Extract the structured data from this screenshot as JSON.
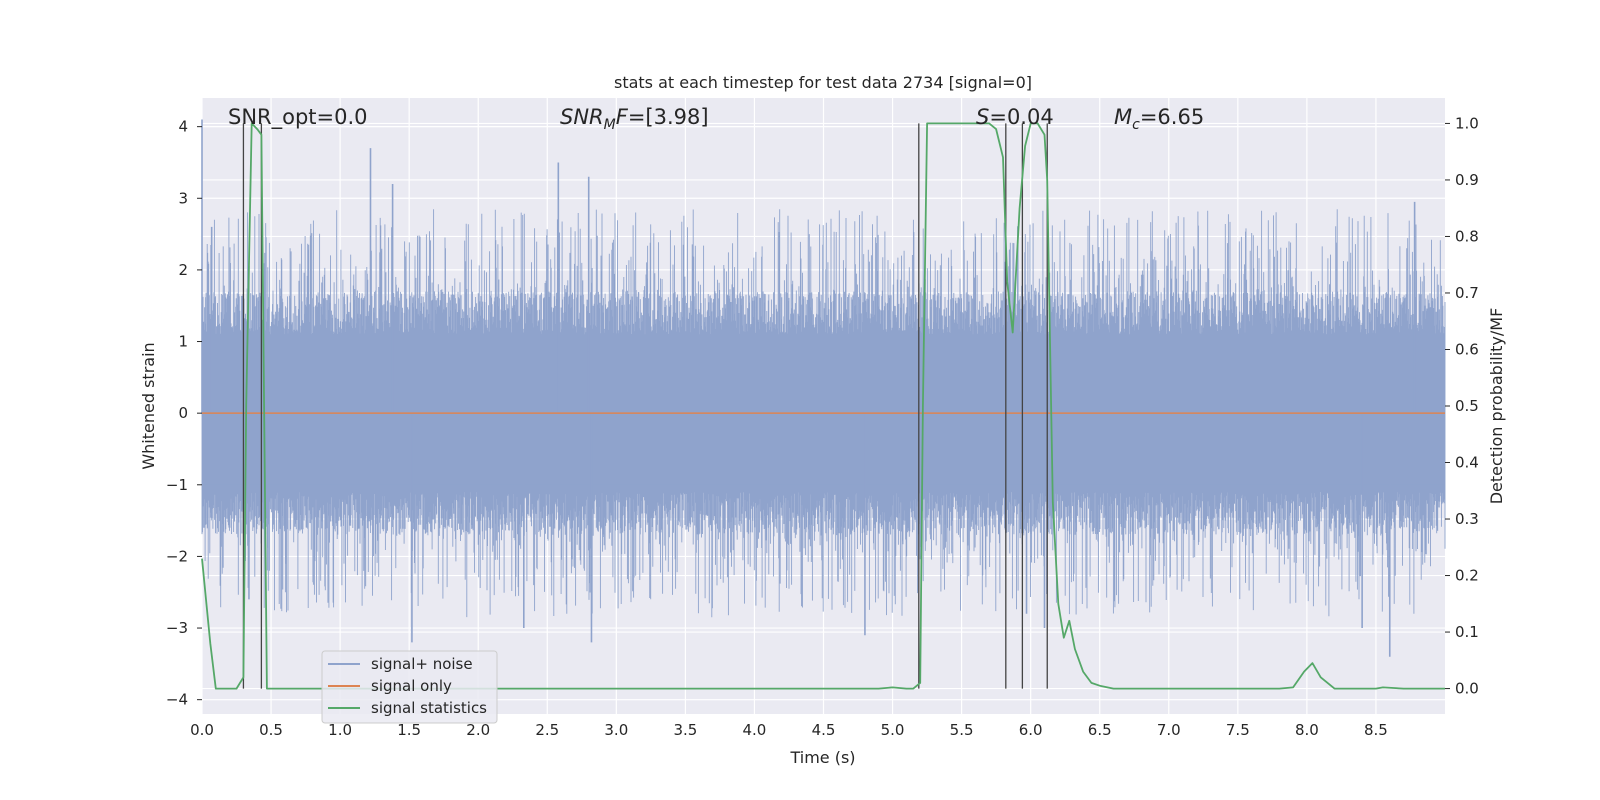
{
  "chart_data": {
    "type": "line",
    "title": "stats at each timestep for test data 2734 [signal=0]",
    "xlabel": "Time (s)",
    "ylabel": "Whitened strain",
    "y2label": "Detection probability/MF",
    "xlim": [
      0.0,
      9.0
    ],
    "ylim": [
      -4.2,
      4.4
    ],
    "y2lim": [
      -0.045,
      1.045
    ],
    "x_ticks": [
      "0.0",
      "0.5",
      "1.0",
      "1.5",
      "2.0",
      "2.5",
      "3.0",
      "3.5",
      "4.0",
      "4.5",
      "5.0",
      "5.5",
      "6.0",
      "6.5",
      "7.0",
      "7.5",
      "8.0",
      "8.5"
    ],
    "y_ticks": [
      "4",
      "3",
      "2",
      "1",
      "0",
      "−1",
      "−2",
      "−3",
      "−4"
    ],
    "y2_ticks": [
      "1.0",
      "0.9",
      "0.8",
      "0.7",
      "0.6",
      "0.5",
      "0.4",
      "0.3",
      "0.2",
      "0.1",
      "0.0"
    ],
    "grid": true,
    "legend_position": "lower-left",
    "annotations": {
      "snr_opt": "SNR_opt=0.0",
      "snr_mf_main": "SNR",
      "snr_mf_sub": "M",
      "snr_mf_rest": "F",
      "snr_mf_value": "=[3.98]",
      "s_symbol": "S",
      "s_value": "=0.04",
      "mc_main": "M",
      "mc_sub": "c",
      "mc_value": "=6.65"
    },
    "series": [
      {
        "name": "signal+ noise",
        "color": "#8fa3cc",
        "axis": "left",
        "style": "noise",
        "core_amplitude": 1.0,
        "peaks": [
          {
            "x": 0.0,
            "y": 4.1
          },
          {
            "x": 0.07,
            "y": 2.6
          },
          {
            "x": 0.34,
            "y": -2.6
          },
          {
            "x": 1.22,
            "y": 3.7
          },
          {
            "x": 1.38,
            "y": 3.2
          },
          {
            "x": 1.52,
            "y": -3.2
          },
          {
            "x": 2.33,
            "y": -3.0
          },
          {
            "x": 2.58,
            "y": 3.5
          },
          {
            "x": 2.8,
            "y": 3.3
          },
          {
            "x": 2.82,
            "y": -3.2
          },
          {
            "x": 4.8,
            "y": -3.1
          },
          {
            "x": 5.97,
            "y": -2.8
          },
          {
            "x": 6.1,
            "y": -3.0
          },
          {
            "x": 8.4,
            "y": -3.0
          },
          {
            "x": 8.6,
            "y": -3.4
          },
          {
            "x": 8.78,
            "y": 2.95
          }
        ]
      },
      {
        "name": "signal only",
        "color": "#dd8452",
        "axis": "left",
        "x": [
          0.0,
          9.0
        ],
        "y": [
          0.0,
          0.0
        ]
      },
      {
        "name": "signal statistics",
        "color": "#55a868",
        "axis": "right",
        "x": [
          0.0,
          0.06,
          0.1,
          0.15,
          0.25,
          0.3,
          0.32,
          0.36,
          0.4,
          0.43,
          0.47,
          0.6,
          1.0,
          2.0,
          3.0,
          4.0,
          4.9,
          5.0,
          5.1,
          5.15,
          5.2,
          5.22,
          5.25,
          5.5,
          5.6,
          5.7,
          5.75,
          5.8,
          5.83,
          5.87,
          5.92,
          5.96,
          6.0,
          6.05,
          6.1,
          6.12,
          6.16,
          6.2,
          6.24,
          6.28,
          6.32,
          6.38,
          6.44,
          6.5,
          6.6,
          6.7,
          7.0,
          7.5,
          7.8,
          7.9,
          7.98,
          8.04,
          8.1,
          8.2,
          8.3,
          8.5,
          8.55,
          8.7,
          9.0
        ],
        "y": [
          0.23,
          0.08,
          0.0,
          0.0,
          0.0,
          0.02,
          0.5,
          1.0,
          0.99,
          0.98,
          0.0,
          0.0,
          0.0,
          0.0,
          0.0,
          0.0,
          0.0,
          0.002,
          0.0,
          0.0,
          0.01,
          0.5,
          1.0,
          1.0,
          1.0,
          1.0,
          0.99,
          0.94,
          0.72,
          0.63,
          0.85,
          0.96,
          1.0,
          1.0,
          0.98,
          0.9,
          0.33,
          0.15,
          0.09,
          0.12,
          0.07,
          0.03,
          0.01,
          0.005,
          0.0,
          0.0,
          0.0,
          0.0,
          0.0,
          0.002,
          0.03,
          0.045,
          0.02,
          0.0,
          0.0,
          0.0,
          0.002,
          0.0,
          0.0
        ]
      }
    ],
    "vlines": [
      0.3,
      0.43,
      5.19,
      5.82,
      5.94,
      6.12
    ]
  }
}
